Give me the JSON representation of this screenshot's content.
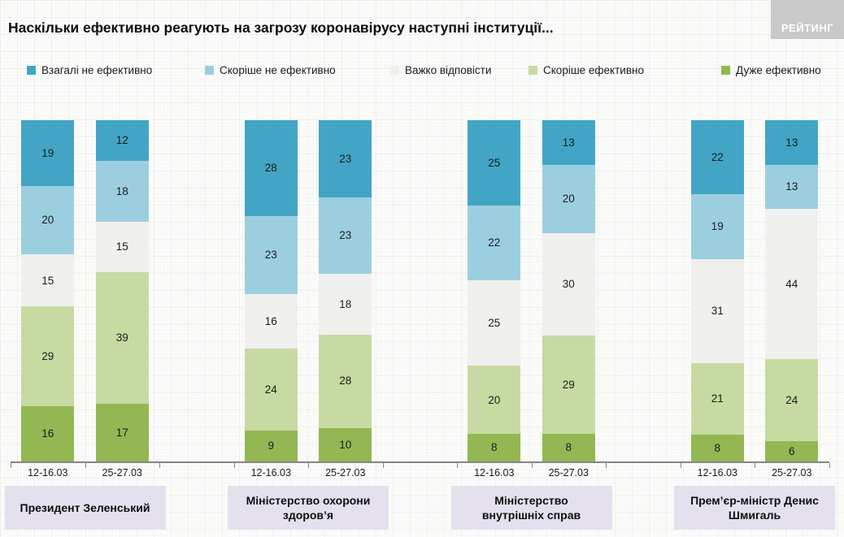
{
  "title": "Наскільки ефективно реагують на загрозу коронавірусу наступні інституції...",
  "logo": {
    "text": "РЕЙТИНГ"
  },
  "chart_data": {
    "type": "bar",
    "stacked": true,
    "orientation": "vertical",
    "legend_position": "top",
    "segment_order": "top-to-bottom",
    "series": [
      {
        "name": "Взагалі не ефективно",
        "color": "#42a5c5"
      },
      {
        "name": "Скоріше не ефективно",
        "color": "#9bcfe0"
      },
      {
        "name": "Важко відповісти",
        "color": "#f0f0ee"
      },
      {
        "name": "Скоріше ефективно",
        "color": "#c7daa2"
      },
      {
        "name": "Дуже ефективно",
        "color": "#93b853"
      }
    ],
    "groups": [
      {
        "label": "Президент Зеленський",
        "bars": [
          {
            "date": "12-16.03",
            "values": [
              19,
              20,
              15,
              29,
              16
            ]
          },
          {
            "date": "25-27.03",
            "values": [
              12,
              18,
              15,
              39,
              17
            ]
          }
        ]
      },
      {
        "label": "Міністерство охорони\nздоров’я",
        "bars": [
          {
            "date": "12-16.03",
            "values": [
              28,
              23,
              16,
              24,
              9
            ]
          },
          {
            "date": "25-27.03",
            "values": [
              23,
              23,
              18,
              28,
              10
            ]
          }
        ]
      },
      {
        "label": "Міністерство\nвнутрішніх справ",
        "bars": [
          {
            "date": "12-16.03",
            "values": [
              25,
              22,
              25,
              20,
              8
            ]
          },
          {
            "date": "25-27.03",
            "values": [
              13,
              20,
              30,
              29,
              8
            ]
          }
        ]
      },
      {
        "label": "Прем’єр-міністр Денис\nШмигаль",
        "bars": [
          {
            "date": "12-16.03",
            "values": [
              22,
              19,
              31,
              21,
              8
            ]
          },
          {
            "date": "25-27.03",
            "values": [
              13,
              13,
              44,
              24,
              6
            ]
          }
        ]
      }
    ]
  }
}
